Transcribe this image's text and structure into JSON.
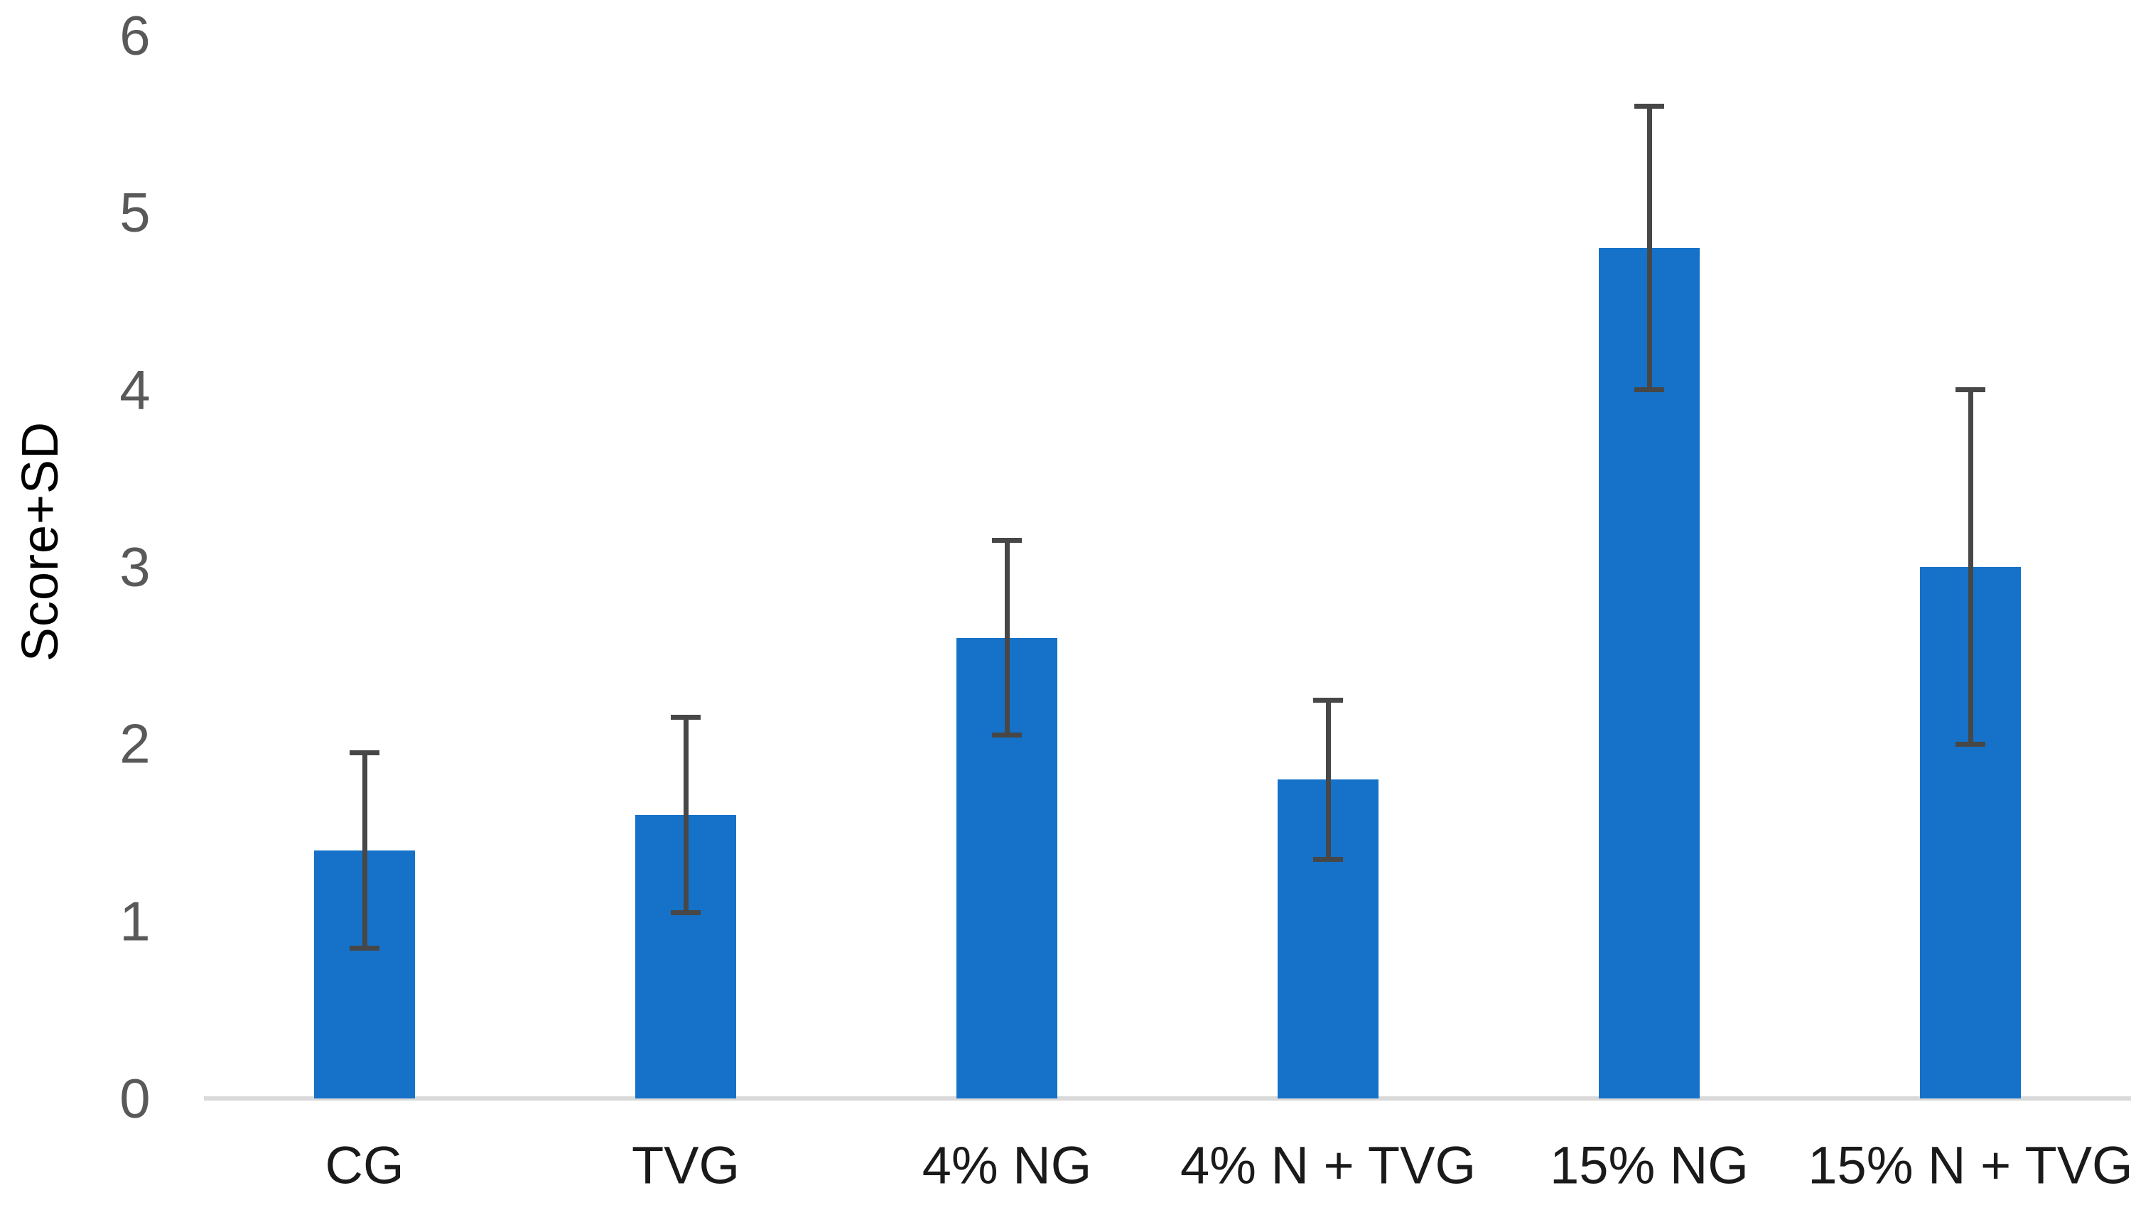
{
  "chart_data": {
    "type": "bar",
    "title": "",
    "xlabel": "",
    "ylabel": "Score+SD",
    "categories": [
      "CG",
      "TVG",
      "4% NG",
      "4% N + TVG",
      "15% NG",
      "15% N + TVG"
    ],
    "values": [
      1.4,
      1.6,
      2.6,
      1.8,
      4.8,
      3.0
    ],
    "error_bars": {
      "type": "symmetric",
      "values": [
        0.55,
        0.55,
        0.55,
        0.45,
        0.8,
        1.0
      ]
    },
    "yticks": [
      0,
      1,
      2,
      3,
      4,
      5,
      6
    ],
    "ylim": [
      0,
      6
    ],
    "grid": false,
    "legend": "none",
    "bar_color": "#1572C8",
    "error_bar_color": "#474747",
    "axis_line_color": "#D9D9D9",
    "tick_label_color": "#595959",
    "category_label_color": "#1A1A1A"
  }
}
